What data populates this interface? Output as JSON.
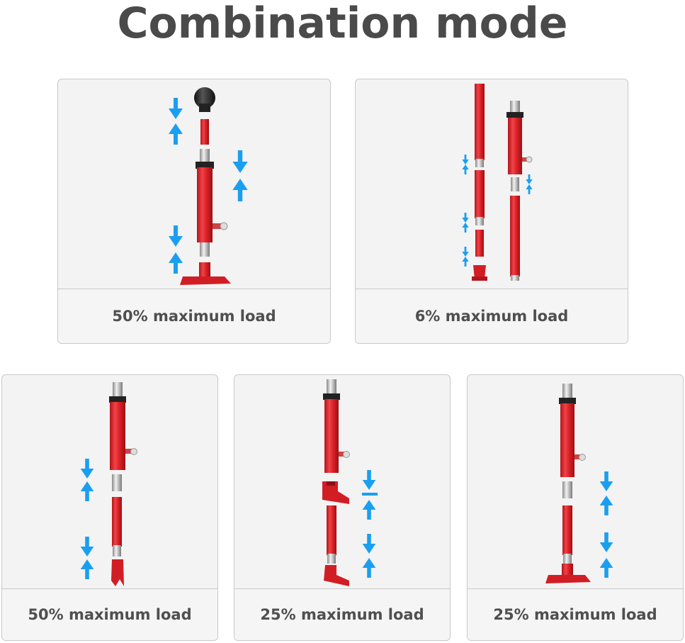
{
  "title": "Combination mode",
  "colors": {
    "cylinder_red": "#e0262b",
    "arrow_blue": "#1a9ff0",
    "chrome": "#c8c8c8",
    "panel_bg": "#f3f3f3"
  },
  "cards": [
    {
      "caption": "50% maximum load"
    },
    {
      "caption": "6% maximum load"
    },
    {
      "caption": "50% maximum load"
    },
    {
      "caption": "25% maximum load"
    },
    {
      "caption": "25% maximum load"
    }
  ]
}
